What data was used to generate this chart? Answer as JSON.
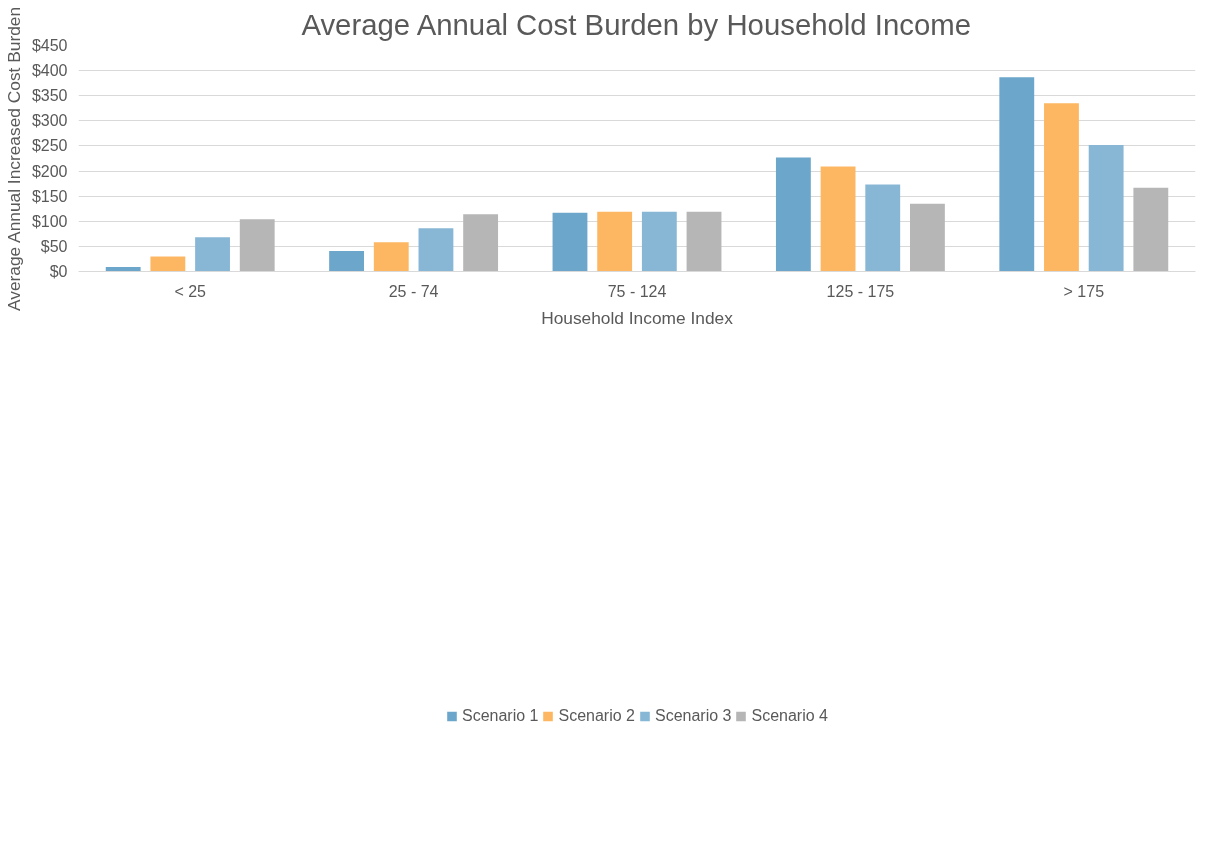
{
  "chart_data": {
    "type": "bar",
    "title": "Average Annual Cost Burden by Household Income",
    "xlabel": "Household Income Index",
    "ylabel": "Average Annual Increased Cost Burden",
    "categories": [
      "< 25",
      "25 - 74",
      "75 - 124",
      "125 - 175",
      "> 175"
    ],
    "series": [
      {
        "name": "Scenario 1",
        "color": "#6ca6cb",
        "values": [
          9,
          41,
          117,
          227,
          387
        ]
      },
      {
        "name": "Scenario 2",
        "color": "#fdb762",
        "values": [
          30,
          58,
          119,
          209,
          335
        ]
      },
      {
        "name": "Scenario 3",
        "color": "#88b7d6",
        "values": [
          68,
          86,
          119,
          173,
          252
        ]
      },
      {
        "name": "Scenario 4",
        "color": "#b6b6b6",
        "values": [
          104,
          114,
          119,
          135,
          167
        ]
      }
    ],
    "ylim": [
      0,
      450
    ],
    "yticks": [
      {
        "value": 0,
        "label": "$0"
      },
      {
        "value": 50,
        "label": "$50"
      },
      {
        "value": 100,
        "label": "$100"
      },
      {
        "value": 150,
        "label": "$150"
      },
      {
        "value": 200,
        "label": "$200"
      },
      {
        "value": 250,
        "label": "$250"
      },
      {
        "value": 300,
        "label": "$300"
      },
      {
        "value": 350,
        "label": "$350"
      },
      {
        "value": 400,
        "label": "$400"
      },
      {
        "value": 450,
        "label": "$450"
      }
    ],
    "grid": "y",
    "legend": "bottom"
  }
}
